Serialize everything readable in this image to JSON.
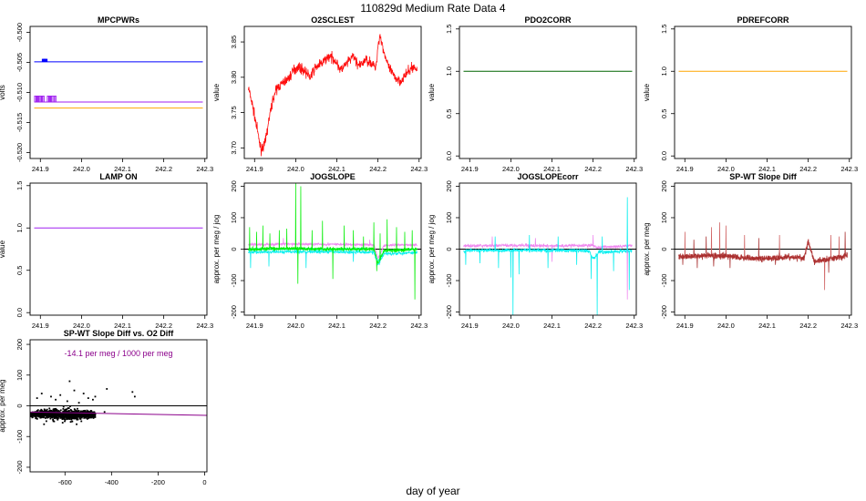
{
  "figure": {
    "title": "110829d   Medium Rate Data 4",
    "xlabel": "day of year"
  },
  "colors": {
    "blue": "#0000ff",
    "purple": "#a020f0",
    "orange": "#ffa500",
    "red": "#ff0000",
    "darkgreen": "#006400",
    "violet": "#ee82ee",
    "green": "#00ee00",
    "cyan": "#00eeee",
    "aqua": "#00ffaa",
    "brown": "#a52a2a",
    "rosybrown": "#cd5c5c",
    "magenta": "#8b008b",
    "black": "#000000"
  },
  "chart_data": [
    {
      "type": "line",
      "title": "MPCPWRs",
      "ylabel": "volts",
      "xlim": [
        241.875,
        242.305
      ],
      "ylim": [
        -0.521,
        -0.499
      ],
      "xticks": [
        "241.9",
        "242.0",
        "242.1",
        "242.2",
        "242.3"
      ],
      "yticks": [
        "-0.520",
        "-0.515",
        "-0.510",
        "-0.505",
        "-0.500"
      ],
      "series": [
        {
          "color": "blue",
          "x": [
            241.885,
            242.295
          ],
          "y": [
            -0.5049,
            -0.5049
          ]
        },
        {
          "color": "blue",
          "kind": "spike",
          "x": [
            241.908,
            241.911,
            241.913
          ],
          "y": [
            -0.5044,
            -0.5044,
            -0.5044
          ],
          "base": -0.5049
        },
        {
          "color": "purple",
          "x": [
            241.885,
            242.295
          ],
          "y": [
            -0.5116,
            -0.5116
          ]
        },
        {
          "color": "purple",
          "kind": "spike",
          "x": [
            241.888,
            241.891,
            241.894,
            241.897,
            241.901,
            241.904,
            241.907,
            241.919,
            241.922,
            241.925,
            241.928,
            241.933,
            241.936
          ],
          "y": [
            -0.5106,
            -0.5106,
            -0.5106,
            -0.5106,
            -0.5106,
            -0.5106,
            -0.5106,
            -0.5106,
            -0.5106,
            -0.5106,
            -0.5106,
            -0.5106,
            -0.5106
          ],
          "base": -0.5116
        },
        {
          "color": "orange",
          "x": [
            241.885,
            242.295
          ],
          "y": [
            -0.5126,
            -0.5126
          ]
        }
      ]
    },
    {
      "type": "line",
      "title": "O2SCLEST",
      "ylabel": "value",
      "xlim": [
        241.875,
        242.305
      ],
      "ylim": [
        3.685,
        3.872
      ],
      "xticks": [
        "241.9",
        "242.0",
        "242.1",
        "242.2",
        "242.3"
      ],
      "yticks": [
        "3.70",
        "3.75",
        "3.80",
        "3.85"
      ],
      "series": [
        {
          "color": "red",
          "noise": 0.007,
          "x": [
            241.885,
            241.895,
            241.905,
            241.915,
            241.925,
            241.935,
            241.945,
            241.955,
            241.965,
            241.975,
            241.985,
            241.995,
            242.005,
            242.02,
            242.035,
            242.05,
            242.065,
            242.08,
            242.095,
            242.11,
            242.125,
            242.14,
            242.155,
            242.17,
            242.185,
            242.195,
            242.2,
            242.205,
            242.215,
            242.225,
            242.24,
            242.255,
            242.27,
            242.285,
            242.295
          ],
          "y": [
            3.785,
            3.76,
            3.73,
            3.698,
            3.705,
            3.74,
            3.77,
            3.785,
            3.79,
            3.795,
            3.8,
            3.81,
            3.815,
            3.81,
            3.8,
            3.815,
            3.82,
            3.83,
            3.825,
            3.81,
            3.82,
            3.83,
            3.815,
            3.825,
            3.82,
            3.812,
            3.845,
            3.86,
            3.835,
            3.815,
            3.8,
            3.795,
            3.805,
            3.815,
            3.81
          ]
        }
      ]
    },
    {
      "type": "line",
      "title": "PDO2CORR",
      "ylabel": "value",
      "xlim": [
        241.875,
        242.305
      ],
      "ylim": [
        -0.03,
        1.53
      ],
      "xticks": [
        "241.9",
        "242.0",
        "242.1",
        "242.2",
        "242.3"
      ],
      "yticks": [
        "0.0",
        "0.5",
        "1.0",
        "1.5"
      ],
      "series": [
        {
          "color": "darkgreen",
          "x": [
            241.885,
            242.295
          ],
          "y": [
            1.0,
            1.0
          ]
        }
      ]
    },
    {
      "type": "line",
      "title": "PDREFCORR",
      "ylabel": "value",
      "xlim": [
        241.875,
        242.305
      ],
      "ylim": [
        -0.03,
        1.53
      ],
      "xticks": [
        "241.9",
        "242.0",
        "242.1",
        "242.2",
        "242.3"
      ],
      "yticks": [
        "0.0",
        "0.5",
        "1.0",
        "1.5"
      ],
      "series": [
        {
          "color": "orange",
          "x": [
            241.885,
            242.295
          ],
          "y": [
            1.0,
            1.0
          ]
        }
      ]
    },
    {
      "type": "line",
      "title": "LAMP ON",
      "ylabel": "value",
      "xlim": [
        241.875,
        242.305
      ],
      "ylim": [
        -0.03,
        1.53
      ],
      "xticks": [
        "241.9",
        "242.0",
        "242.1",
        "242.2",
        "242.3"
      ],
      "yticks": [
        "0.0",
        "0.5",
        "1.0",
        "1.5"
      ],
      "series": [
        {
          "color": "purple",
          "x": [
            241.885,
            242.295
          ],
          "y": [
            1.0,
            1.0
          ]
        }
      ]
    },
    {
      "type": "line",
      "title": "JOGSLOPE",
      "ylabel": "approx. per meg / jog",
      "xlim": [
        241.875,
        242.305
      ],
      "ylim": [
        -210,
        210
      ],
      "xticks": [
        "241.9",
        "242.0",
        "242.1",
        "242.2",
        "242.3"
      ],
      "yticks": [
        "-200",
        "-100",
        "0",
        "100",
        "200"
      ],
      "zero_line": true,
      "series": [
        {
          "color": "violet",
          "noise": 4,
          "x": [
            241.885,
            242.0,
            242.1,
            242.19,
            242.2,
            242.215,
            242.295
          ],
          "y": [
            15,
            16,
            15,
            14,
            -30,
            12,
            14
          ],
          "spikes": [
            [
              241.97,
              35
            ],
            [
              242.18,
              30
            ]
          ]
        },
        {
          "color": "aqua",
          "noise": 4,
          "x": [
            241.885,
            242.0,
            242.1,
            242.19,
            242.2,
            242.215,
            242.295
          ],
          "y": [
            0,
            1,
            0,
            0,
            -40,
            -5,
            0
          ]
        },
        {
          "color": "cyan",
          "noise": 5,
          "x": [
            241.885,
            242.0,
            242.1,
            242.19,
            242.2,
            242.215,
            242.295
          ],
          "y": [
            -10,
            -8,
            -9,
            -10,
            -50,
            -15,
            -10
          ],
          "spikes": [
            [
              241.89,
              -60
            ],
            [
              241.935,
              -55
            ],
            [
              242.025,
              -60
            ],
            [
              242.14,
              -40
            ]
          ]
        },
        {
          "color": "green",
          "noise": 6,
          "x": [
            241.885,
            242.0,
            242.1,
            242.19,
            242.2,
            242.215,
            242.295
          ],
          "y": [
            0,
            2,
            0,
            0,
            -45,
            -5,
            0
          ],
          "spikes": [
            [
              241.888,
              70
            ],
            [
              241.905,
              55
            ],
            [
              241.92,
              75
            ],
            [
              241.937,
              50
            ],
            [
              241.96,
              60
            ],
            [
              241.978,
              65
            ],
            [
              242.0,
              210
            ],
            [
              242.005,
              -110
            ],
            [
              242.012,
              200
            ],
            [
              242.04,
              60
            ],
            [
              242.065,
              90
            ],
            [
              242.09,
              -95
            ],
            [
              242.118,
              75
            ],
            [
              242.14,
              60
            ],
            [
              242.165,
              40
            ],
            [
              242.19,
              85
            ],
            [
              242.197,
              -70
            ],
            [
              242.205,
              50
            ],
            [
              242.222,
              95
            ],
            [
              242.245,
              70
            ],
            [
              242.265,
              55
            ],
            [
              242.283,
              60
            ],
            [
              242.29,
              -160
            ]
          ]
        }
      ]
    },
    {
      "type": "line",
      "title": "JOGSLOPEcorr",
      "ylabel": "approx. per meg / jog",
      "xlim": [
        241.875,
        242.305
      ],
      "ylim": [
        -210,
        210
      ],
      "xticks": [
        "241.9",
        "242.0",
        "242.1",
        "242.2",
        "242.3"
      ],
      "yticks": [
        "-200",
        "-100",
        "0",
        "100",
        "200"
      ],
      "zero_line": true,
      "series": [
        {
          "color": "violet",
          "noise": 5,
          "x": [
            241.885,
            242.0,
            242.1,
            242.2,
            242.21,
            242.295
          ],
          "y": [
            10,
            12,
            10,
            12,
            5,
            12
          ],
          "spikes": [
            [
              241.955,
              40
            ],
            [
              242.06,
              35
            ],
            [
              242.1,
              -40
            ],
            [
              242.2,
              45
            ],
            [
              242.283,
              -160
            ]
          ]
        },
        {
          "color": "cyan",
          "noise": 6,
          "x": [
            241.885,
            242.0,
            242.1,
            242.19,
            242.2,
            242.215,
            242.295
          ],
          "y": [
            -5,
            -3,
            -4,
            -5,
            -30,
            -10,
            -5
          ],
          "spikes": [
            [
              241.89,
              -50
            ],
            [
              241.925,
              -45
            ],
            [
              241.962,
              40
            ],
            [
              241.97,
              -60
            ],
            [
              242.0,
              -90
            ],
            [
              242.005,
              -210
            ],
            [
              242.02,
              -80
            ],
            [
              242.045,
              45
            ],
            [
              242.09,
              -60
            ],
            [
              242.115,
              40
            ],
            [
              242.16,
              -50
            ],
            [
              242.195,
              -95
            ],
            [
              242.21,
              -210
            ],
            [
              242.222,
              40
            ],
            [
              242.25,
              -70
            ],
            [
              242.283,
              165
            ],
            [
              242.288,
              -130
            ]
          ]
        }
      ]
    },
    {
      "type": "line",
      "title": "SP-WT Slope Diff",
      "ylabel": "approx. per meg",
      "xlim": [
        241.875,
        242.305
      ],
      "ylim": [
        -210,
        210
      ],
      "xticks": [
        "241.9",
        "242.0",
        "242.1",
        "242.2",
        "242.3"
      ],
      "yticks": [
        "-200",
        "-100",
        "0",
        "100",
        "200"
      ],
      "zero_line": true,
      "series": [
        {
          "color": "rosybrown",
          "noise": 8,
          "x": [
            241.885,
            241.95,
            242.0,
            242.05,
            242.1,
            242.15,
            242.19,
            242.2,
            242.215,
            242.295
          ],
          "y": [
            -25,
            -20,
            -22,
            -28,
            -30,
            -25,
            -28,
            30,
            -40,
            -20
          ],
          "spikes": [
            [
              241.9,
              55
            ],
            [
              241.965,
              70
            ],
            [
              241.985,
              85
            ],
            [
              242.0,
              75
            ],
            [
              242.045,
              45
            ],
            [
              242.13,
              45
            ],
            [
              242.24,
              -130
            ],
            [
              242.255,
              45
            ],
            [
              242.275,
              40
            ]
          ]
        },
        {
          "color": "brown",
          "noise": 10,
          "x": [
            241.885,
            241.95,
            242.0,
            242.05,
            242.1,
            242.15,
            242.19,
            242.2,
            242.215,
            242.295
          ],
          "y": [
            -25,
            -20,
            -22,
            -28,
            -30,
            -25,
            -28,
            20,
            -40,
            -20
          ],
          "spikes": [
            [
              241.895,
              -50
            ],
            [
              241.922,
              30
            ],
            [
              241.93,
              -60
            ],
            [
              241.952,
              40
            ],
            [
              241.97,
              -55
            ],
            [
              242.01,
              -60
            ],
            [
              242.08,
              35
            ],
            [
              242.12,
              -50
            ],
            [
              242.25,
              -75
            ],
            [
              242.29,
              55
            ]
          ]
        }
      ]
    },
    {
      "type": "scatter",
      "title": "SP-WT Slope Diff vs. O2 Diff",
      "ylabel": "approx. per meg",
      "annotation": "-14.1 per meg / 1000 per meg",
      "xlim": [
        -750,
        10
      ],
      "ylim": [
        -215,
        215
      ],
      "xticks": [
        "-600",
        "-400",
        "-200",
        "0"
      ],
      "yticks": [
        "-200",
        "-100",
        "0",
        "100",
        "200"
      ],
      "zero_line": true,
      "fit": {
        "color": "magenta",
        "slope": -0.0141,
        "intercept": -31
      },
      "cluster": {
        "x_range": [
          -750,
          -470
        ],
        "center_x": -600,
        "center_y": -28,
        "spread_y": 12,
        "n": 900
      },
      "outliers": [
        [
          -700,
          40
        ],
        [
          -660,
          30
        ],
        [
          -640,
          20
        ],
        [
          -560,
          50
        ],
        [
          -590,
          15
        ],
        [
          -620,
          35
        ],
        [
          -580,
          80
        ],
        [
          -540,
          10
        ],
        [
          -520,
          40
        ],
        [
          -690,
          -60
        ],
        [
          -610,
          -55
        ],
        [
          -550,
          -60
        ],
        [
          -500,
          25
        ],
        [
          -480,
          20
        ],
        [
          -470,
          30
        ],
        [
          -430,
          -20
        ],
        [
          -420,
          55
        ],
        [
          -310,
          45
        ],
        [
          -300,
          30
        ],
        [
          -680,
          -50
        ],
        [
          -720,
          25
        ],
        [
          -650,
          -50
        ]
      ]
    }
  ]
}
